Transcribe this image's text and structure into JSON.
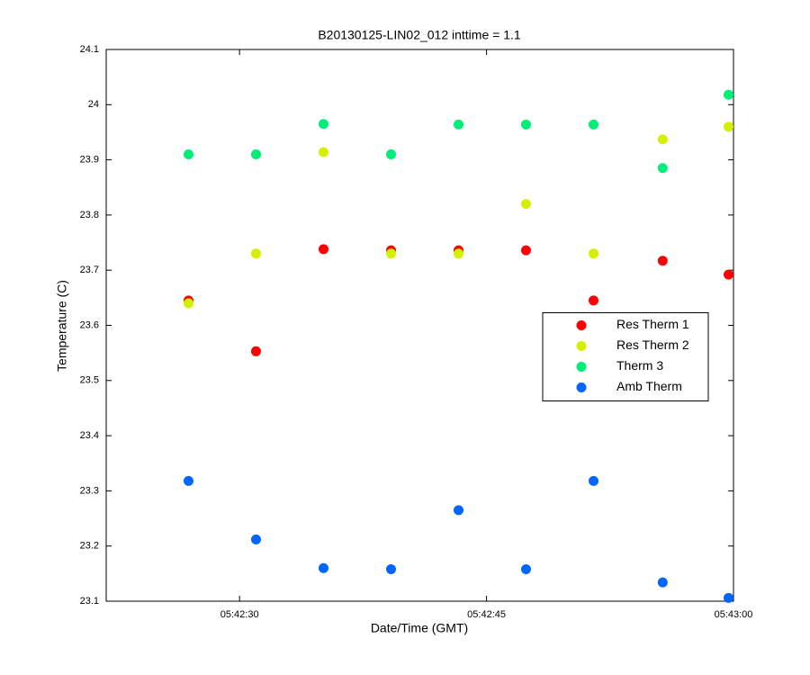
{
  "chart_data": {
    "type": "scatter",
    "title": "B20130125-LIN02_012 inttime = 1.1",
    "x_label": "Date/Time (GMT)",
    "y_label": "Temperature (C)",
    "x": [
      26.9,
      31.0,
      35.1,
      39.2,
      43.3,
      47.4,
      51.5,
      55.7,
      59.7
    ],
    "xlim": [
      21.9,
      60
    ],
    "xticks": [
      {
        "value": 30,
        "label": "05:42:30"
      },
      {
        "value": 45,
        "label": "05:42:45"
      },
      {
        "value": 60,
        "label": "05:43:00"
      }
    ],
    "ylim": [
      23.1,
      24.1
    ],
    "yticks": [
      23.1,
      23.2,
      23.3,
      23.4,
      23.5,
      23.6,
      23.7,
      23.8,
      23.9,
      24,
      24.1
    ],
    "grid": false,
    "legend": "center right",
    "series": [
      {
        "name": "Res Therm 1",
        "color": "#ff0000",
        "values": [
          23.645,
          23.553,
          23.738,
          23.736,
          23.736,
          23.736,
          23.645,
          23.717,
          23.692
        ]
      },
      {
        "name": "Res Therm 2",
        "color": "#d4f000",
        "values": [
          23.64,
          23.73,
          23.914,
          23.73,
          23.73,
          23.82,
          23.73,
          23.937,
          23.96
        ]
      },
      {
        "name": "Therm 3",
        "color": "#00ee77",
        "values": [
          23.91,
          23.91,
          23.965,
          23.91,
          23.964,
          23.964,
          23.964,
          23.885,
          24.018
        ]
      },
      {
        "name": "Amb Therm",
        "color": "#0066ff",
        "values": [
          23.318,
          23.212,
          23.16,
          23.158,
          23.265,
          23.158,
          23.318,
          23.134,
          23.106
        ]
      }
    ]
  }
}
